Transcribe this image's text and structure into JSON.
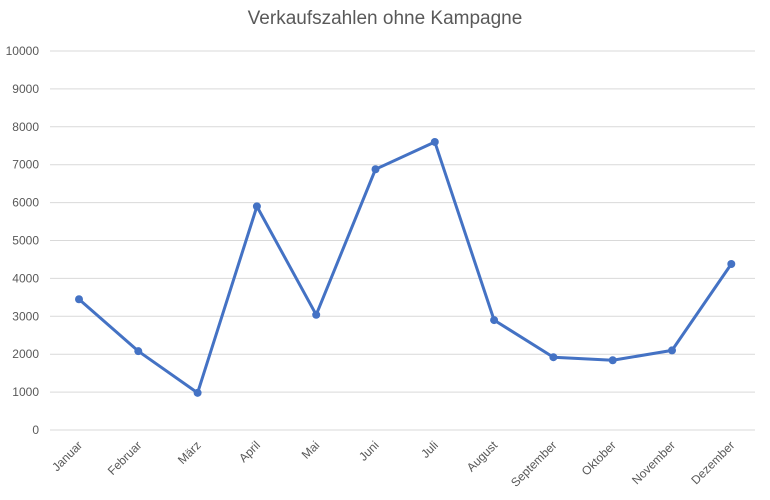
{
  "chart_data": {
    "type": "line",
    "title": "Verkaufszahlen ohne Kampagne",
    "xlabel": "",
    "ylabel": "",
    "categories": [
      "Januar",
      "Februar",
      "März",
      "April",
      "Mai",
      "Juni",
      "Juli",
      "August",
      "September",
      "Oktober",
      "November",
      "Dezember"
    ],
    "series": [
      {
        "values": [
          3450,
          2080,
          980,
          5900,
          3040,
          6880,
          7600,
          2900,
          1920,
          1840,
          2100,
          4380
        ]
      }
    ],
    "ylim": [
      0,
      10000
    ],
    "yticks": [
      "0",
      "1000",
      "2000",
      "3000",
      "4000",
      "5000",
      "6000",
      "7000",
      "8000",
      "9000",
      "10000"
    ],
    "grid": true,
    "legend": "none",
    "colors": {
      "line": "#4472C4",
      "grid": "#d9d9d9",
      "text": "#595959"
    }
  }
}
